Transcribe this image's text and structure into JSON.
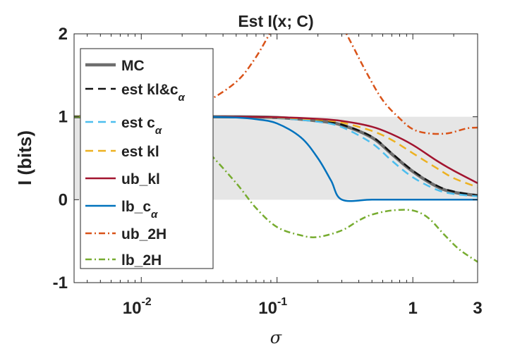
{
  "chart_data": {
    "type": "line",
    "title": "Est I(x; C)",
    "xlabel": "σ",
    "ylabel": "I (bits)",
    "xscale": "log",
    "xlim": [
      0.0032,
      3
    ],
    "ylim": [
      -1,
      2
    ],
    "x_ticks": [
      {
        "value": 0.01,
        "base": "10",
        "exp": "-2"
      },
      {
        "value": 0.1,
        "base": "10",
        "exp": "-1"
      },
      {
        "value": 1,
        "label": "1"
      },
      {
        "value": 3,
        "label": "3"
      }
    ],
    "y_ticks": [
      {
        "value": -1,
        "label": "-1"
      },
      {
        "value": 0,
        "label": "0"
      },
      {
        "value": 1,
        "label": "1"
      },
      {
        "value": 2,
        "label": "2"
      }
    ],
    "shaded_band": {
      "y0": 0,
      "y1": 1,
      "color": "#e6e6e6"
    },
    "legend_position": "top-left",
    "series": [
      {
        "name": "MC",
        "legend_text": "MC",
        "sub": "",
        "color": "#6e6e6e",
        "dash": "solid",
        "width": 4.5,
        "x": [
          0.0032,
          0.01,
          0.05,
          0.1,
          0.2,
          0.3,
          0.5,
          0.7,
          1,
          1.5,
          2,
          3
        ],
        "y": [
          1,
          1,
          1,
          0.99,
          0.95,
          0.9,
          0.75,
          0.55,
          0.34,
          0.16,
          0.09,
          0.05
        ]
      },
      {
        "name": "est kl&c_α",
        "legend_text": "est kl&c",
        "sub": "α",
        "color": "#111111",
        "dash": "dashed",
        "width": 2.5,
        "x": [
          0.0032,
          0.01,
          0.05,
          0.1,
          0.2,
          0.3,
          0.5,
          0.7,
          1,
          1.5,
          2,
          3
        ],
        "y": [
          1,
          1,
          1,
          0.99,
          0.955,
          0.905,
          0.76,
          0.56,
          0.35,
          0.17,
          0.1,
          0.05
        ]
      },
      {
        "name": "est c_α",
        "legend_text": "est c",
        "sub": "α",
        "color": "#4DBEEE",
        "dash": "dashed",
        "width": 2.5,
        "x": [
          0.0032,
          0.01,
          0.05,
          0.1,
          0.2,
          0.3,
          0.5,
          0.7,
          1,
          1.5,
          2,
          3
        ],
        "y": [
          1,
          1,
          1,
          0.985,
          0.94,
          0.875,
          0.68,
          0.47,
          0.27,
          0.12,
          0.07,
          0.04
        ]
      },
      {
        "name": "est kl",
        "legend_text": "est kl",
        "sub": "",
        "color": "#EDB120",
        "dash": "dashed",
        "width": 2.5,
        "x": [
          0.0032,
          0.01,
          0.05,
          0.1,
          0.2,
          0.3,
          0.5,
          0.7,
          1,
          1.5,
          2,
          3
        ],
        "y": [
          1,
          1,
          1,
          0.99,
          0.965,
          0.93,
          0.83,
          0.72,
          0.56,
          0.38,
          0.26,
          0.15
        ]
      },
      {
        "name": "ub_kl",
        "legend_text": "ub_kl",
        "sub": "",
        "color": "#A2142F",
        "dash": "solid",
        "width": 2.5,
        "x": [
          0.0032,
          0.01,
          0.05,
          0.1,
          0.2,
          0.3,
          0.5,
          0.7,
          1,
          1.5,
          2,
          3
        ],
        "y": [
          1,
          1,
          1,
          0.995,
          0.975,
          0.95,
          0.88,
          0.79,
          0.66,
          0.47,
          0.35,
          0.2
        ]
      },
      {
        "name": "lb_c_α",
        "legend_text": "lb_c",
        "sub": "α",
        "color": "#0072BD",
        "dash": "solid",
        "width": 2.5,
        "x": [
          0.0032,
          0.01,
          0.03,
          0.05,
          0.07,
          0.1,
          0.15,
          0.2,
          0.25,
          0.3,
          0.5,
          1,
          3
        ],
        "y": [
          1,
          1,
          1,
          0.99,
          0.97,
          0.92,
          0.75,
          0.5,
          0.23,
          0,
          0,
          0,
          0
        ]
      },
      {
        "name": "ub_2H",
        "legend_text": "ub_2H",
        "sub": "",
        "color": "#D95319",
        "dash": "dashdot",
        "width": 2.5,
        "x": [
          0.0032,
          0.01,
          0.02,
          0.03,
          0.05,
          0.07,
          0.1,
          0.15,
          0.2,
          0.3,
          0.45,
          0.6,
          0.8,
          1,
          1.3,
          1.8,
          2.5,
          3
        ],
        "y": [
          1,
          1.02,
          1.08,
          1.18,
          1.42,
          1.72,
          2.15,
          2.55,
          2.55,
          2.1,
          1.55,
          1.2,
          0.98,
          0.85,
          0.8,
          0.8,
          0.86,
          0.87
        ]
      },
      {
        "name": "lb_2H",
        "legend_text": "lb_2H",
        "sub": "",
        "color": "#77AC30",
        "dash": "dashdot",
        "width": 2.5,
        "x": [
          0.0032,
          0.01,
          0.015,
          0.02,
          0.03,
          0.05,
          0.07,
          0.1,
          0.15,
          0.2,
          0.3,
          0.4,
          0.5,
          0.7,
          1,
          1.3,
          1.7,
          2.2,
          3
        ],
        "y": [
          1,
          0.98,
          0.93,
          0.85,
          0.6,
          0.2,
          -0.1,
          -0.33,
          -0.43,
          -0.45,
          -0.37,
          -0.25,
          -0.18,
          -0.13,
          -0.13,
          -0.22,
          -0.42,
          -0.6,
          -0.75
        ]
      }
    ]
  }
}
